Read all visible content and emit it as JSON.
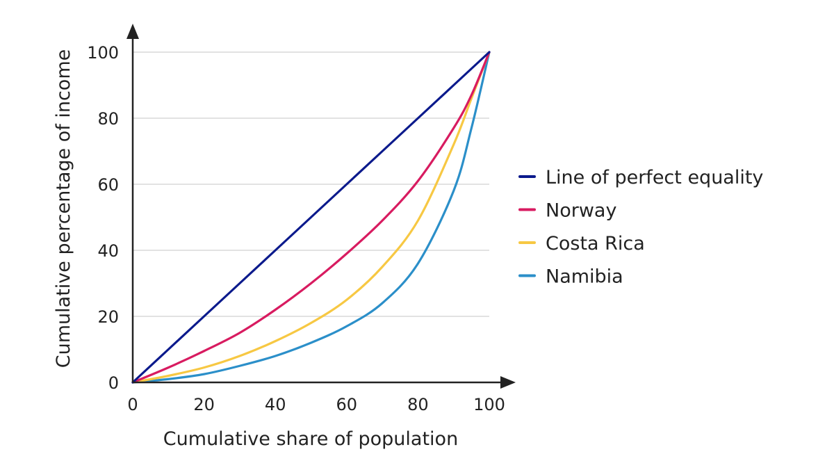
{
  "chart_data": {
    "type": "line",
    "title": "",
    "xlabel": "Cumulative share of population",
    "ylabel": "Cumulative percentage of income",
    "xlim": [
      0,
      100
    ],
    "ylim": [
      0,
      100
    ],
    "x_ticks": [
      "0",
      "20",
      "40",
      "60",
      "80",
      "100"
    ],
    "y_ticks": [
      "0",
      "20",
      "40",
      "60",
      "80",
      "100"
    ],
    "grid": "horizontal",
    "legend_position": "right",
    "x": [
      0,
      10,
      20,
      30,
      40,
      50,
      60,
      70,
      80,
      90,
      95,
      100
    ],
    "series": [
      {
        "name": "Line of perfect equality",
        "color": "#0b1a8c",
        "values": [
          0,
          10,
          20,
          30,
          40,
          50,
          60,
          70,
          80,
          90,
          95,
          100
        ]
      },
      {
        "name": "Norway",
        "color": "#d81b60",
        "values": [
          0,
          4.5,
          9.5,
          15,
          22,
          30,
          39,
          49,
          61,
          77,
          87,
          100
        ]
      },
      {
        "name": "Costa Rica",
        "color": "#f7c843",
        "values": [
          0,
          2,
          4.5,
          8,
          12.5,
          18,
          25,
          35,
          49,
          72,
          86,
          100
        ]
      },
      {
        "name": "Namibia",
        "color": "#2b8fc9",
        "values": [
          0,
          1,
          2.5,
          5,
          8,
          12,
          17,
          24,
          36,
          58,
          77,
          100
        ]
      }
    ]
  }
}
